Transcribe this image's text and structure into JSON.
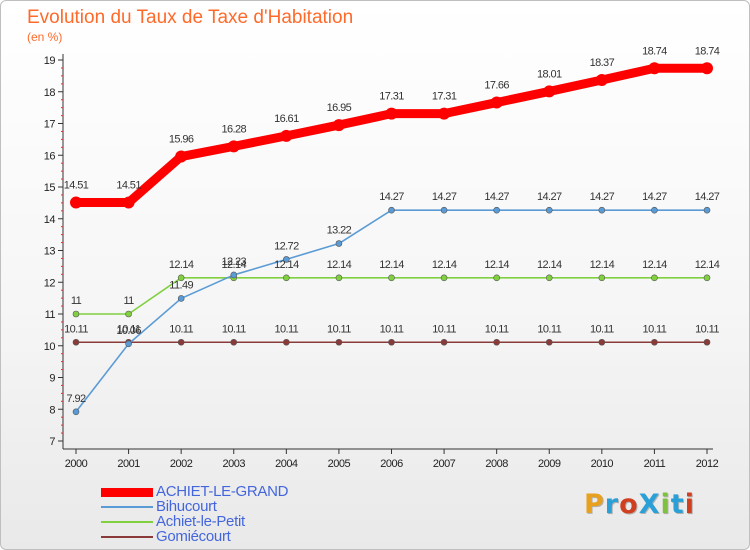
{
  "title": "Evolution du Taux de Taxe d'Habitation",
  "subtitle": "(en %)",
  "logo_text": "ProXiti",
  "chart_data": {
    "type": "line",
    "title": "Evolution du Taux de Taxe d'Habitation",
    "ylabel": "(en %)",
    "x": [
      "2000",
      "2001",
      "2002",
      "2003",
      "2004",
      "2005",
      "2006",
      "2007",
      "2008",
      "2009",
      "2010",
      "2011",
      "2012"
    ],
    "ylim": [
      7,
      19
    ],
    "yticks": [
      7,
      8,
      9,
      10,
      11,
      12,
      13,
      14,
      15,
      16,
      17,
      18,
      19
    ],
    "grid": false,
    "legend_position": "bottom-left",
    "series": [
      {
        "name": "ACHIET-LE-GRAND",
        "color": "#ff0000",
        "values": [
          14.51,
          14.51,
          15.96,
          16.28,
          16.61,
          16.95,
          17.31,
          17.31,
          17.66,
          18.01,
          18.37,
          18.74,
          18.74
        ],
        "labels": [
          "14.51",
          "14.51",
          "15.96",
          "16.28",
          "16.61",
          "16.95",
          "17.31",
          "17.31",
          "17.66",
          "18.01",
          "18.37",
          "18.74",
          "18.74"
        ]
      },
      {
        "name": "Bihucourt",
        "color": "#5b9bd5",
        "values": [
          7.92,
          10.06,
          11.49,
          12.23,
          12.72,
          13.22,
          14.27,
          14.27,
          14.27,
          14.27,
          14.27,
          14.27,
          14.27
        ],
        "labels": [
          "7.92",
          "10.06",
          "11.49",
          "12.23",
          "12.72",
          "13.22",
          "14.27",
          "14.27",
          "14.27",
          "14.27",
          "14.27",
          "14.27",
          "14.27"
        ]
      },
      {
        "name": "Achiet-le-Petit",
        "color": "#80d040",
        "values": [
          11,
          11,
          12.14,
          12.14,
          12.14,
          12.14,
          12.14,
          12.14,
          12.14,
          12.14,
          12.14,
          12.14,
          12.14
        ],
        "labels": [
          "11",
          "11",
          "12.14",
          "12.14",
          "12.14",
          "12.14",
          "12.14",
          "12.14",
          "12.14",
          "12.14",
          "12.14",
          "12.14",
          "12.14"
        ]
      },
      {
        "name": "Gomiécourt",
        "color": "#8b3a3a",
        "values": [
          10.11,
          10.11,
          10.11,
          10.11,
          10.11,
          10.11,
          10.11,
          10.11,
          10.11,
          10.11,
          10.11,
          10.11,
          10.11
        ],
        "labels": [
          "10.11",
          "10.11",
          "10.11",
          "10.11",
          "10.11",
          "10.11",
          "10.11",
          "10.11",
          "10.11",
          "10.11",
          "10.11",
          "10.11",
          "10.11"
        ]
      }
    ]
  }
}
